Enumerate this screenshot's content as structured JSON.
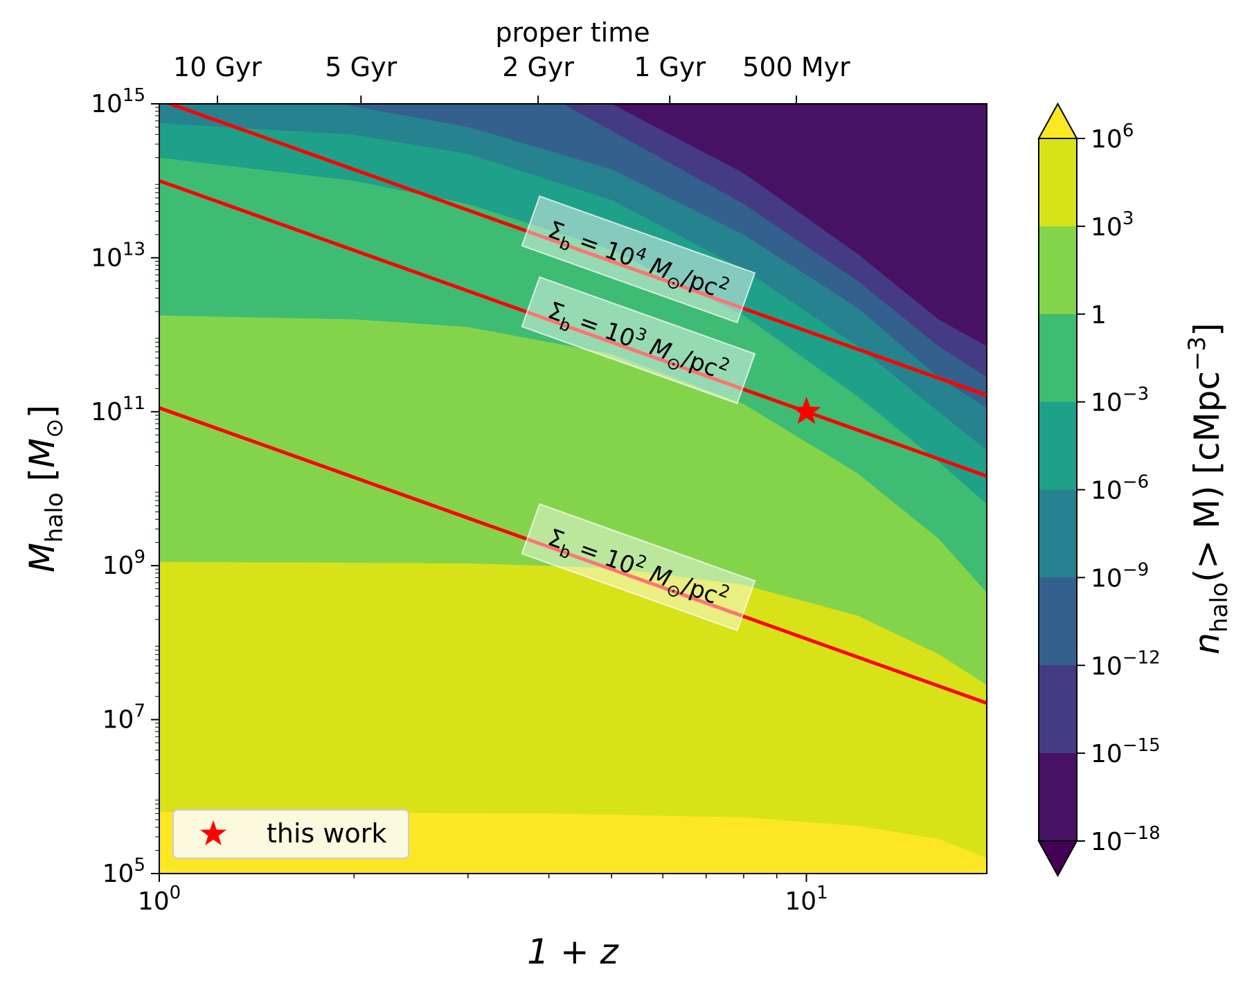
{
  "chart_data": {
    "type": "heatmap",
    "title": "",
    "x_axis": {
      "label": "1 + z",
      "scale": "log",
      "range": [
        1,
        19
      ],
      "major_ticks": [
        {
          "value": 1,
          "base": "10",
          "exp": "0"
        },
        {
          "value": 10,
          "base": "10",
          "exp": "1"
        }
      ],
      "minor_ticks": [
        2,
        3,
        4,
        5,
        6,
        7,
        8,
        9
      ]
    },
    "top_axis": {
      "label": "proper time",
      "ticks": [
        {
          "label": "10 Gyr",
          "x": 1.23
        },
        {
          "label": "5 Gyr",
          "x": 2.05
        },
        {
          "label": "2 Gyr",
          "x": 3.85
        },
        {
          "label": "1 Gyr",
          "x": 6.15
        },
        {
          "label": "500 Myr",
          "x": 9.65
        }
      ]
    },
    "y_axis": {
      "label_main": "M",
      "label_sub": "halo",
      "label_unit_open": " [",
      "label_unit": "M",
      "label_unit_sub": "⊙",
      "label_unit_close": "]",
      "scale": "log",
      "range": [
        100000,
        1000000000000000
      ],
      "major_ticks": [
        {
          "value": 100000,
          "base": "10",
          "exp": "5"
        },
        {
          "value": 10000000,
          "base": "10",
          "exp": "7"
        },
        {
          "value": 1000000000,
          "base": "10",
          "exp": "9"
        },
        {
          "value": 100000000000,
          "base": "10",
          "exp": "11"
        },
        {
          "value": 10000000000000,
          "base": "10",
          "exp": "13"
        },
        {
          "value": 1000000000000000,
          "base": "10",
          "exp": "15"
        }
      ]
    },
    "colorbar": {
      "label_main": "n",
      "label_sub": "halo",
      "label_rest": "(> M) [cMpc",
      "label_exp": "−3",
      "label_close": "]",
      "extend": "both",
      "ticks": [
        {
          "base": "10",
          "exp": "6"
        },
        {
          "base": "10",
          "exp": "3"
        },
        {
          "base": "1",
          "exp": ""
        },
        {
          "base": "10",
          "exp": "−3"
        },
        {
          "base": "10",
          "exp": "−6"
        },
        {
          "base": "10",
          "exp": "−9"
        },
        {
          "base": "10",
          "exp": "−12"
        },
        {
          "base": "10",
          "exp": "−15"
        },
        {
          "base": "10",
          "exp": "−18"
        }
      ],
      "levels_log10": [
        -18,
        -15,
        -12,
        -9,
        -6,
        -3,
        0,
        3,
        6
      ],
      "band_colors": [
        "#471164",
        "#443b84",
        "#34608d",
        "#26828e",
        "#1fa088",
        "#3fbc73",
        "#84d44b",
        "#d8e219"
      ],
      "under_color": "#440154",
      "over_color": "#fde725"
    },
    "contour_boundaries_log10M": [
      {
        "level_log10": 3,
        "points": [
          [
            1,
            5.8
          ],
          [
            4,
            5.78
          ],
          [
            8,
            5.73
          ],
          [
            12,
            5.62
          ],
          [
            16,
            5.45
          ],
          [
            19,
            5.2
          ]
        ]
      },
      {
        "level_log10": 0,
        "points": [
          [
            1,
            9.05
          ],
          [
            3,
            9.03
          ],
          [
            5,
            8.97
          ],
          [
            8,
            8.75
          ],
          [
            12,
            8.35
          ],
          [
            16,
            7.85
          ],
          [
            19,
            7.45
          ]
        ]
      },
      {
        "level_log10": -3,
        "points": [
          [
            1,
            12.25
          ],
          [
            2,
            12.2
          ],
          [
            3,
            12.1
          ],
          [
            5,
            11.75
          ],
          [
            8,
            11.1
          ],
          [
            12,
            10.2
          ],
          [
            16,
            9.35
          ],
          [
            19,
            8.65
          ]
        ]
      },
      {
        "level_log10": -6,
        "points": [
          [
            1,
            14.3
          ],
          [
            2,
            14.0
          ],
          [
            3,
            13.7
          ],
          [
            5,
            13.1
          ],
          [
            8,
            12.25
          ],
          [
            12,
            11.2
          ],
          [
            16,
            10.35
          ],
          [
            19,
            9.8
          ]
        ]
      },
      {
        "level_log10": -9,
        "points": [
          [
            1,
            14.75
          ],
          [
            2,
            14.6
          ],
          [
            3,
            14.35
          ],
          [
            5,
            13.75
          ],
          [
            8,
            12.85
          ],
          [
            12,
            11.85
          ],
          [
            16,
            11.0
          ],
          [
            19,
            10.5
          ]
        ]
      },
      {
        "level_log10": -12,
        "points": [
          [
            1.9,
            15.0
          ],
          [
            3,
            14.7
          ],
          [
            5,
            14.15
          ],
          [
            8,
            13.3
          ],
          [
            12,
            12.35
          ],
          [
            16,
            11.45
          ],
          [
            19,
            11.05
          ]
        ]
      },
      {
        "level_log10": -15,
        "points": [
          [
            4.2,
            15.0
          ],
          [
            5,
            14.65
          ],
          [
            8,
            13.7
          ],
          [
            12,
            12.7
          ],
          [
            16,
            11.85
          ],
          [
            19,
            11.45
          ]
        ]
      },
      {
        "level_log10": -18,
        "points": [
          [
            5.0,
            15.0
          ],
          [
            8,
            14.1
          ],
          [
            12,
            13.05
          ],
          [
            16,
            12.2
          ],
          [
            19,
            11.85
          ]
        ]
      }
    ],
    "lines": [
      {
        "label_main": "Σ",
        "label_sub": "b",
        "label_eq": " = 10",
        "label_exp": "4",
        "label_unit": " M",
        "label_unit_sub": "⊙",
        "label_rest": "/pc",
        "label_rest_exp": "2",
        "color": "#ff0000",
        "log10M_at_1": 15.05,
        "log10M_slope": -3.0
      },
      {
        "label_main": "Σ",
        "label_sub": "b",
        "label_eq": " = 10",
        "label_exp": "3",
        "label_unit": " M",
        "label_unit_sub": "⊙",
        "label_rest": "/pc",
        "label_rest_exp": "2",
        "color": "#ff0000",
        "log10M_at_1": 14.0,
        "log10M_slope": -3.0
      },
      {
        "label_main": "Σ",
        "label_sub": "b",
        "label_eq": " = 10",
        "label_exp": "2",
        "label_unit": " M",
        "label_unit_sub": "⊙",
        "label_rest": "/pc",
        "label_rest_exp": "2",
        "color": "#ff0000",
        "log10M_at_1": 11.05,
        "log10M_slope": -3.0
      }
    ],
    "points": [
      {
        "name": "this work",
        "x": 10,
        "y": 100000000000,
        "marker": "star",
        "color": "#ff0000"
      }
    ],
    "legend": {
      "position": "lower-left",
      "entries": [
        "this work"
      ]
    }
  }
}
